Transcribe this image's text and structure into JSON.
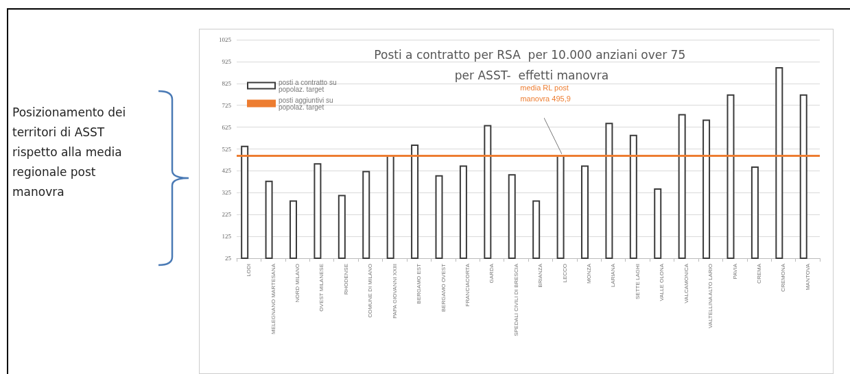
{
  "chart_data": {
    "type": "bar",
    "title": "Posti a contratto per RSA  per 10.000 anziani over 75 per ASST-  effetti manovra",
    "categories": [
      "LODI",
      "MELEGNANO MARTESANA",
      "NORD MILANO",
      "OVEST MILANESE",
      "RHODENSE",
      "COMUNE DI MILANO",
      "PAPA GIOVANNI XXIII",
      "BERGAMO EST",
      "BERGAMO OVEST",
      "FRANCIACORTA",
      "GARDA",
      "SPEDALI CIVILI DI BRESCIA",
      "BRIANZA",
      "LECCO",
      "MONZA",
      "LARIANA",
      "SETTE LAGHI",
      "VALLE OLONA",
      "VALCAMONICA",
      "VALTELLINA ALTO LARIO",
      "PAVIA",
      "CREMA",
      "CREMONA",
      "MANTOVA"
    ],
    "series": [
      {
        "name": "posti a contratto su popolaz. target",
        "color": "#ffffff",
        "values": [
          540,
          380,
          290,
          460,
          315,
          425,
          495,
          545,
          405,
          450,
          635,
          410,
          290,
          495,
          450,
          645,
          590,
          345,
          685,
          660,
          775,
          445,
          900,
          775
        ]
      },
      {
        "name": "posti aggiuntivi su popolaz. target",
        "color": "#ed7d31",
        "values": [
          null,
          null,
          null,
          null,
          null,
          null,
          null,
          null,
          null,
          null,
          null,
          null,
          null,
          null,
          null,
          null,
          null,
          null,
          null,
          null,
          null,
          null,
          null,
          null
        ]
      }
    ],
    "ylim": [
      25,
      1025
    ],
    "yticks": [
      25,
      125,
      225,
      325,
      425,
      525,
      625,
      725,
      825,
      925,
      1025
    ],
    "grid": "y",
    "legend": "top left",
    "ref_lines": [
      {
        "axis": "y",
        "value": 495.9,
        "label": "media RL post manovra 495,9",
        "color": "#ed7d31"
      }
    ],
    "annotations": [
      "Posizionamento dei territori di ASST rispetto alla media regionale post manovra"
    ]
  }
}
